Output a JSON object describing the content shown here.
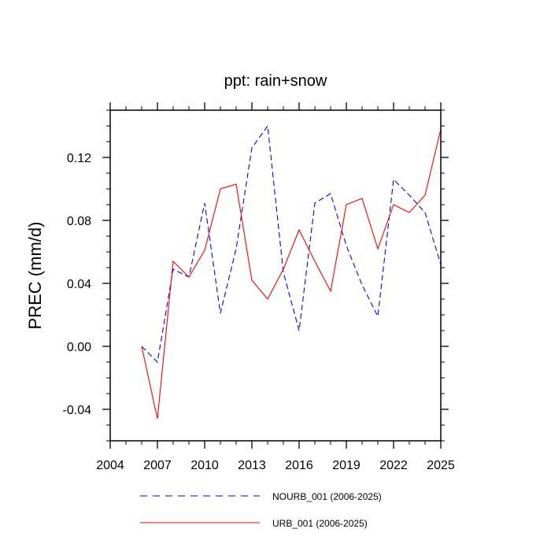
{
  "chart_data": {
    "type": "line",
    "title": "ppt: rain+snow",
    "xlabel": "",
    "ylabel": "PREC  (mm/d)",
    "xlim": [
      2004,
      2025
    ],
    "ylim": [
      -0.06,
      0.15
    ],
    "xticks": [
      2004,
      2007,
      2010,
      2013,
      2016,
      2019,
      2022,
      2025
    ],
    "xtick_labels": [
      "2004",
      "2007",
      "2010",
      "2013",
      "2016",
      "2019",
      "2022",
      "2025"
    ],
    "yticks": [
      -0.04,
      0.0,
      0.04,
      0.08,
      0.12
    ],
    "ytick_labels": [
      "-0.04",
      "0.00",
      "0.04",
      "0.08",
      "0.12"
    ],
    "x": [
      2006,
      2007,
      2008,
      2009,
      2010,
      2011,
      2012,
      2013,
      2014,
      2015,
      2016,
      2017,
      2018,
      2019,
      2020,
      2021,
      2022,
      2023,
      2024,
      2025
    ],
    "series": [
      {
        "name": "NOURB_001 (2006-2025)",
        "color": "#0000ff",
        "dash": "dashed",
        "values": [
          0.0,
          -0.01,
          0.049,
          0.044,
          0.091,
          0.021,
          0.062,
          0.126,
          0.14,
          0.047,
          0.01,
          0.091,
          0.097,
          0.064,
          0.039,
          0.019,
          0.106,
          0.096,
          0.085,
          0.052
        ]
      },
      {
        "name": "URB_001 (2006-2025)",
        "color": "#ff0000",
        "dash": "solid",
        "values": [
          0.0,
          -0.046,
          0.054,
          0.044,
          0.061,
          0.1,
          0.103,
          0.042,
          0.03,
          0.049,
          0.074,
          0.054,
          0.035,
          0.09,
          0.094,
          0.062,
          0.09,
          0.085,
          0.096,
          0.138
        ]
      }
    ],
    "grid": false,
    "legend_position": "bottom"
  }
}
